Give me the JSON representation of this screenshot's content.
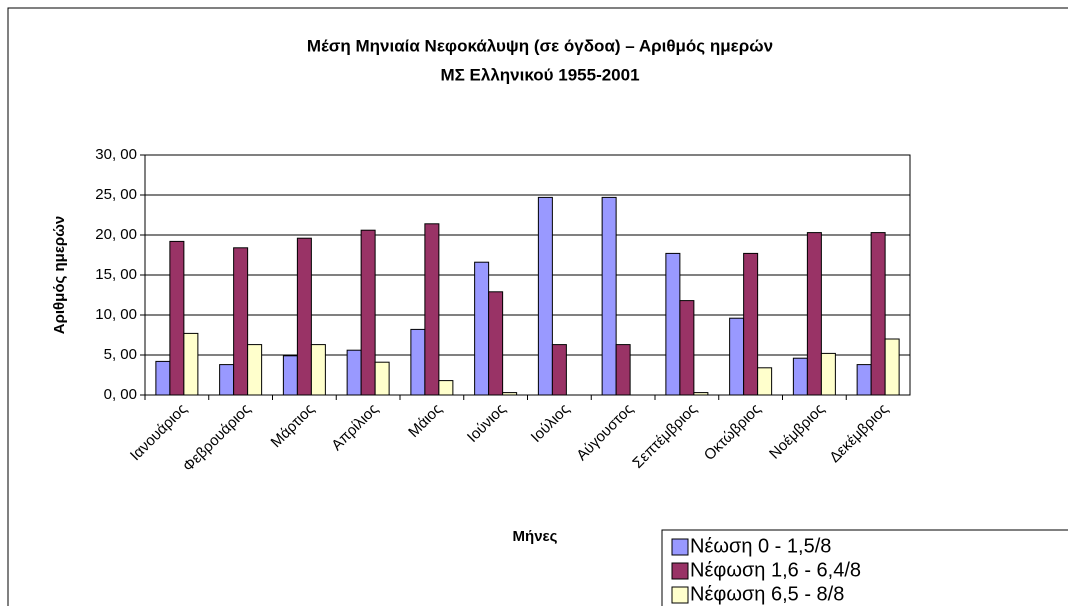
{
  "chart_data": {
    "type": "bar",
    "title": "Μέση Μηνιαία Νεφοκάλυψη (σε όγδοα) – Αριθμός ημερών",
    "subtitle": "ΜΣ Ελληνικού 1955-2001",
    "y_label": "Αριθμός ημερών",
    "x_label": "Μήνες",
    "categories": [
      "Ιανουάριος",
      "Φεβρουάριος",
      "Μάρτιος",
      "Απρίλιος",
      "Μάιος",
      "Ιούνιος",
      "Ιούλιος",
      "Αύγουστος",
      "Σεπτέμβριος",
      "Οκτώβριος",
      "Νοέμβριος",
      "Δεκέμβριος"
    ],
    "series": [
      {
        "name": "Νέωση 0 - 1,5/8",
        "color": "#9999ff",
        "values": [
          4.2,
          3.8,
          4.9,
          5.6,
          8.2,
          16.6,
          24.7,
          24.7,
          17.7,
          9.6,
          4.6,
          3.8
        ]
      },
      {
        "name": "Νέφωση 1,6 - 6,4/8",
        "color": "#993366",
        "values": [
          19.2,
          18.4,
          19.6,
          20.6,
          21.4,
          12.9,
          6.3,
          6.3,
          11.8,
          17.7,
          20.3,
          20.3
        ]
      },
      {
        "name": "Νέφωση 6,5 - 8/8",
        "color": "#ffffcc",
        "values": [
          7.7,
          6.3,
          6.3,
          4.1,
          1.8,
          0.3,
          0,
          0,
          0.3,
          3.4,
          5.2,
          7.0
        ]
      }
    ],
    "ylim": [
      0,
      30
    ],
    "yticks": [
      {
        "value": 0,
        "label": "0, 00"
      },
      {
        "value": 5,
        "label": "5, 00"
      },
      {
        "value": 10,
        "label": "10, 00"
      },
      {
        "value": 15,
        "label": "15, 00"
      },
      {
        "value": 20,
        "label": "20, 00"
      },
      {
        "value": 25,
        "label": "25, 00"
      },
      {
        "value": 30,
        "label": "30, 00"
      }
    ],
    "grid": true,
    "legend": "bottom-right"
  }
}
